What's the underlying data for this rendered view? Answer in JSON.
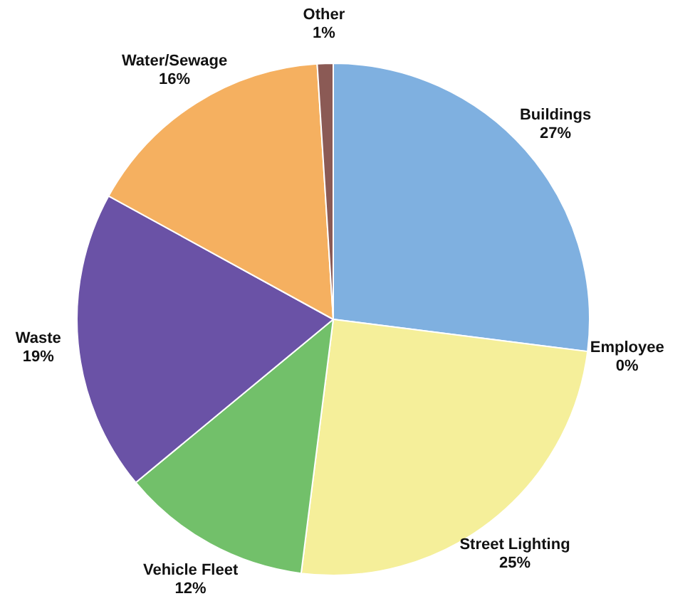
{
  "chart_data": {
    "type": "pie",
    "categories": [
      "Buildings",
      "Employee",
      "Street Lighting",
      "Vehicle Fleet",
      "Waste",
      "Water/Sewage",
      "Other"
    ],
    "values": [
      27,
      0,
      25,
      12,
      19,
      16,
      1
    ],
    "value_labels": [
      "27%",
      "0%",
      "25%",
      "12%",
      "19%",
      "16%",
      "1%"
    ],
    "colors": [
      "#7fb0e0",
      "#d8d8d8",
      "#f5ef9a",
      "#72c06a",
      "#6a52a6",
      "#f5b060",
      "#8b5a55"
    ],
    "legend": false
  }
}
